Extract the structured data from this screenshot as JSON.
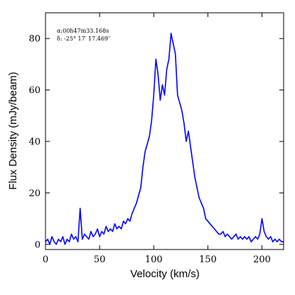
{
  "chart_data": {
    "type": "line",
    "title": "",
    "xlabel": "Velocity (km/s)",
    "ylabel": "Flux Density (mJy/beam)",
    "xlim": [
      0,
      220
    ],
    "ylim": [
      -2,
      90
    ],
    "xticks": [
      0,
      50,
      100,
      150,
      200
    ],
    "yticks": [
      0,
      20,
      40,
      60,
      80
    ],
    "x_tick_labels": [
      "0",
      "50",
      "100",
      "150",
      "200"
    ],
    "y_tick_labels": [
      "0",
      "20",
      "40",
      "60",
      "80"
    ],
    "grid": false,
    "legend": "none",
    "line_color": "#0000ff",
    "annotations": [
      "α:00h47m33.168s",
      "δ: -25° 17′ 17.469″"
    ],
    "series": [
      {
        "x": [
          0,
          2,
          4,
          6,
          8,
          10,
          12,
          14,
          16,
          18,
          20,
          22,
          24,
          26,
          28,
          30,
          32,
          34,
          36,
          38,
          40,
          42,
          44,
          46,
          48,
          50,
          52,
          54,
          56,
          58,
          60,
          62,
          64,
          66,
          68,
          70,
          72,
          74,
          76,
          78,
          80,
          82,
          84,
          86,
          88,
          90,
          92,
          94,
          96,
          98,
          100,
          102,
          104,
          106,
          108,
          110,
          112,
          114,
          116,
          118,
          120,
          122,
          124,
          126,
          128,
          130,
          132,
          134,
          136,
          138,
          140,
          142,
          144,
          146,
          148,
          150,
          152,
          154,
          156,
          158,
          160,
          162,
          164,
          166,
          168,
          170,
          172,
          174,
          176,
          178,
          180,
          182,
          184,
          186,
          188,
          190,
          192,
          194,
          196,
          198,
          200,
          202,
          204,
          206,
          208,
          210,
          212,
          214,
          216,
          218,
          220
        ],
        "values": [
          1,
          2,
          0,
          3,
          1,
          0,
          2,
          1,
          3,
          0,
          2,
          1,
          4,
          2,
          3,
          1,
          14,
          2,
          4,
          3,
          2,
          5,
          3,
          4,
          6,
          3,
          5,
          4,
          7,
          5,
          6,
          5,
          8,
          6,
          7,
          6,
          9,
          8,
          10,
          9,
          12,
          14,
          16,
          19,
          22,
          30,
          36,
          39,
          42,
          48,
          58,
          72,
          66,
          56,
          62,
          58,
          68,
          72,
          82,
          78,
          74,
          58,
          55,
          52,
          47,
          40,
          44,
          38,
          32,
          26,
          22,
          18,
          16,
          14,
          10,
          9,
          8,
          7,
          6,
          5,
          4,
          4,
          5,
          3,
          4,
          3,
          2,
          3,
          4,
          2,
          3,
          2,
          3,
          2,
          3,
          1,
          2,
          3,
          2,
          4,
          10,
          5,
          3,
          2,
          3,
          1,
          2,
          1,
          2,
          1,
          1
        ]
      }
    ]
  }
}
